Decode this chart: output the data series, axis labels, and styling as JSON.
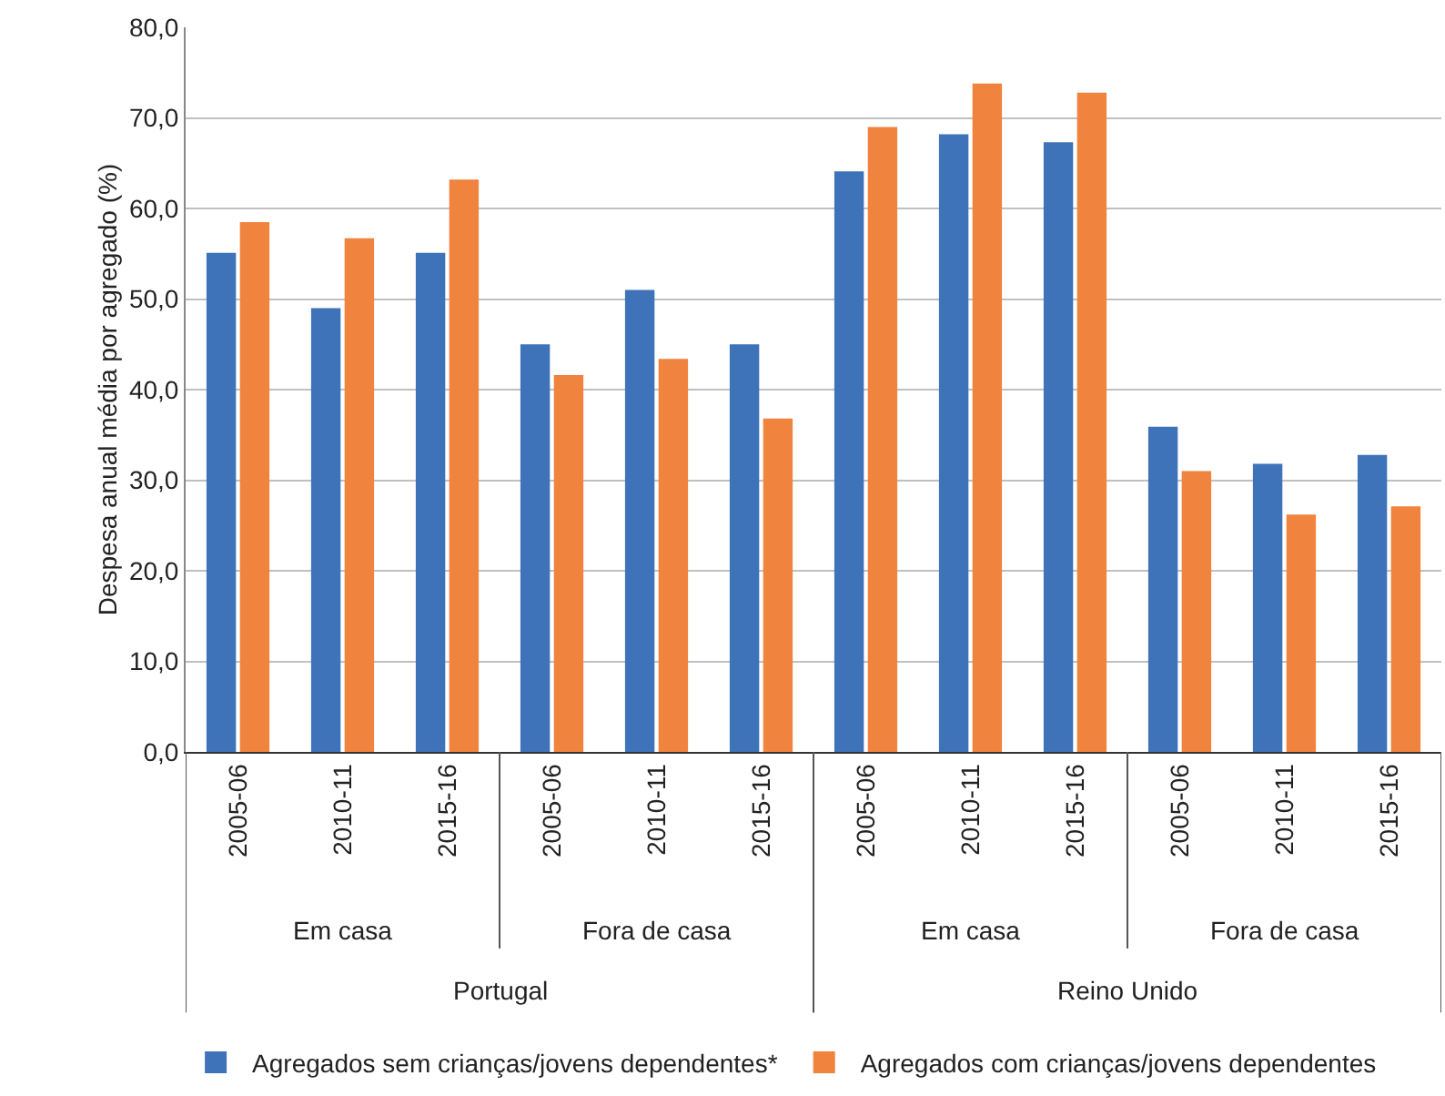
{
  "chart_data": {
    "type": "bar",
    "ylabel": "Despesa anual média por agregado (%)",
    "categories": [
      "2005-06",
      "2010-11",
      "2015-16",
      "2005-06",
      "2010-11",
      "2015-16",
      "2005-06",
      "2010-11",
      "2015-16",
      "2005-06",
      "2010-11",
      "2015-16"
    ],
    "series": [
      {
        "name": "Agregados sem crianças/jovens dependentes*",
        "color": "#3e73ba",
        "values": [
          55.1,
          49.0,
          55.1,
          45.0,
          51.0,
          45.0,
          64.1,
          68.2,
          67.3,
          35.9,
          31.8,
          32.8
        ]
      },
      {
        "name": "Agregados com crianças/jovens dependentes",
        "color": "#f0833e",
        "values": [
          58.5,
          56.7,
          63.2,
          41.6,
          43.4,
          36.8,
          69.0,
          73.8,
          72.8,
          31.0,
          26.2,
          27.1
        ]
      }
    ],
    "annotations": [
      "Em casa",
      "Fora de casa",
      "Em casa",
      "Fora de casa",
      "Portugal",
      "Reino Unido"
    ],
    "ylim": [
      0,
      80
    ],
    "yticks": [
      {
        "value": 0,
        "label": "0,0"
      },
      {
        "value": 10,
        "label": "10,0"
      },
      {
        "value": 20,
        "label": "20,0"
      },
      {
        "value": 30,
        "label": "30,0"
      },
      {
        "value": 40,
        "label": "40,0"
      },
      {
        "value": 50,
        "label": "50,0"
      },
      {
        "value": 60,
        "label": "60,0"
      },
      {
        "value": 70,
        "label": "70,0"
      },
      {
        "value": 80,
        "label": "80,0"
      }
    ],
    "grid": "y",
    "legend": "bottom"
  }
}
